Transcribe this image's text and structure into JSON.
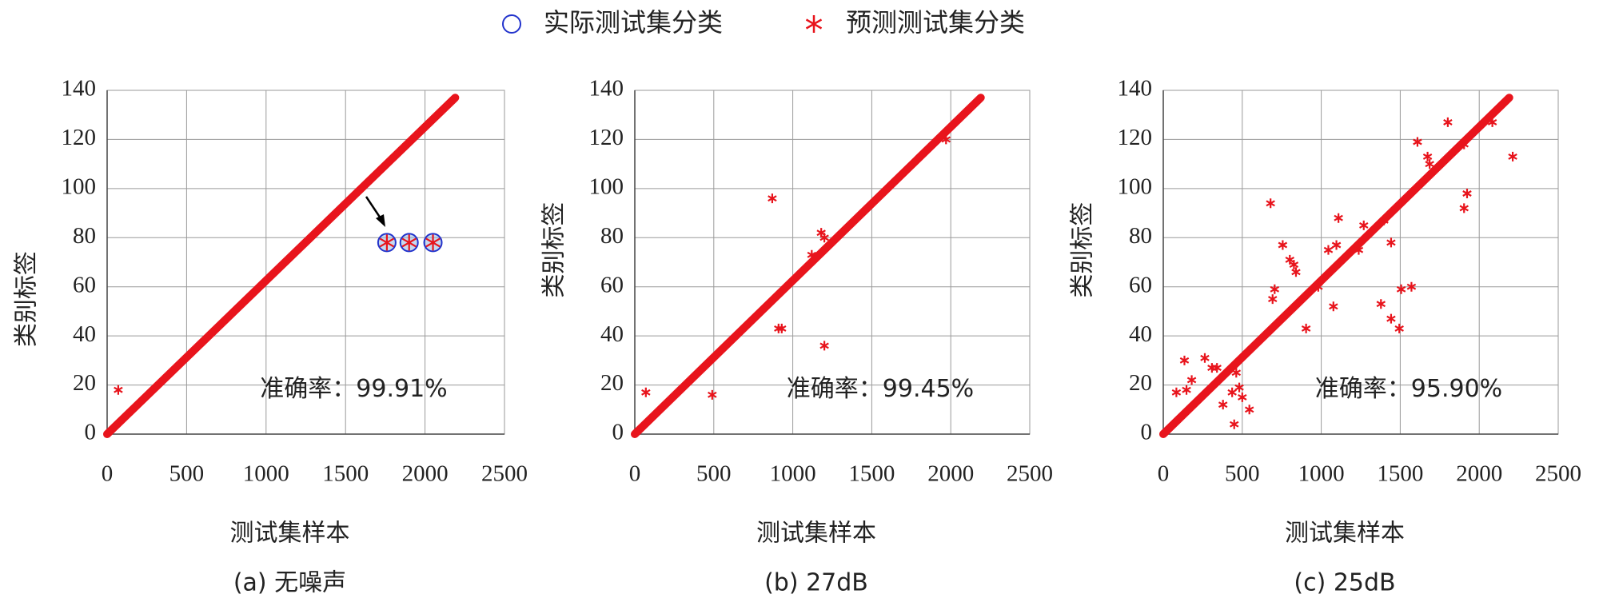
{
  "chart_data": [
    {
      "type": "scatter",
      "subtitle": "(a) 无噪声",
      "xlabel": "测试集样本",
      "ylabel": "类别标签",
      "annotation": "准确率：99.91%",
      "xlim": [
        0,
        2500
      ],
      "ylim": [
        0,
        140
      ],
      "xticks": [
        0,
        500,
        1000,
        1500,
        2000,
        2500
      ],
      "yticks": [
        0,
        20,
        40,
        60,
        80,
        100,
        120,
        140
      ],
      "grid": true,
      "diagonal": {
        "x": [
          0,
          2190
        ],
        "values": [
          0,
          137
        ],
        "color": "#e8141c"
      },
      "series": [
        {
          "name": "实际测试集分类",
          "color": "#2233cc",
          "marker": "circle",
          "x": [
            1760,
            1900,
            2050
          ],
          "values": [
            78,
            78,
            78
          ]
        },
        {
          "name": "预测测试集分类",
          "color": "#e8141c",
          "marker": "asterisk",
          "x": [
            70,
            1760,
            1900,
            2050
          ],
          "values": [
            18,
            78,
            78,
            78
          ]
        }
      ]
    },
    {
      "type": "scatter",
      "subtitle": "(b) 27dB",
      "xlabel": "测试集样本",
      "ylabel": "类别标签",
      "annotation": "准确率：99.45%",
      "xlim": [
        0,
        2500
      ],
      "ylim": [
        0,
        140
      ],
      "xticks": [
        0,
        500,
        1000,
        1500,
        2000,
        2500
      ],
      "yticks": [
        0,
        20,
        40,
        60,
        80,
        100,
        120,
        140
      ],
      "grid": true,
      "diagonal": {
        "x": [
          0,
          2190
        ],
        "values": [
          0,
          137
        ],
        "color": "#e8141c"
      },
      "series": [
        {
          "name": "实际测试集分类",
          "color": "#2233cc",
          "marker": "circle",
          "x": [],
          "values": []
        },
        {
          "name": "预测测试集分类",
          "color": "#e8141c",
          "marker": "asterisk",
          "x": [
            70,
            490,
            870,
            910,
            930,
            1120,
            1180,
            1200,
            1200,
            1970
          ],
          "values": [
            17,
            16,
            96,
            43,
            43,
            73,
            82,
            80,
            36,
            120
          ]
        }
      ]
    },
    {
      "type": "scatter",
      "subtitle": "(c) 25dB",
      "xlabel": "测试集样本",
      "ylabel": "类别标签",
      "annotation": "准确率：95.90%",
      "xlim": [
        0,
        2500
      ],
      "ylim": [
        0,
        140
      ],
      "xticks": [
        0,
        500,
        1000,
        1500,
        2000,
        2500
      ],
      "yticks": [
        0,
        20,
        40,
        60,
        80,
        100,
        120,
        140
      ],
      "grid": true,
      "diagonal": {
        "x": [
          0,
          2190
        ],
        "values": [
          0,
          137
        ],
        "color": "#e8141c"
      },
      "series": [
        {
          "name": "实际测试集分类",
          "color": "#2233cc",
          "marker": "circle",
          "x": [],
          "values": []
        },
        {
          "name": "预测测试集分类",
          "color": "#e8141c",
          "marker": "asterisk",
          "x": [
            83,
            147,
            134,
            180,
            263,
            308,
            340,
            378,
            436,
            449,
            481,
            500,
            545,
            462,
            692,
            679,
            756,
            801,
            827,
            840,
            705,
            904,
            981,
            1045,
            1077,
            1109,
            1096,
            1237,
            1269,
            1397,
            1378,
            1442,
            1442,
            1494,
            1506,
            1571,
            1609,
            1673,
            1686,
            1801,
            1904,
            1923,
            1904,
            2083,
            2212
          ],
          "values": [
            17,
            18,
            30,
            22,
            31,
            27,
            27,
            12,
            17,
            4,
            19,
            15,
            10,
            25,
            55,
            94,
            77,
            71,
            69,
            66,
            59,
            43,
            60,
            75,
            52,
            88,
            77,
            75,
            85,
            87,
            53,
            78,
            47,
            43,
            59,
            60,
            119,
            113,
            110,
            127,
            118,
            98,
            92,
            127,
            113
          ]
        }
      ]
    }
  ]
}
